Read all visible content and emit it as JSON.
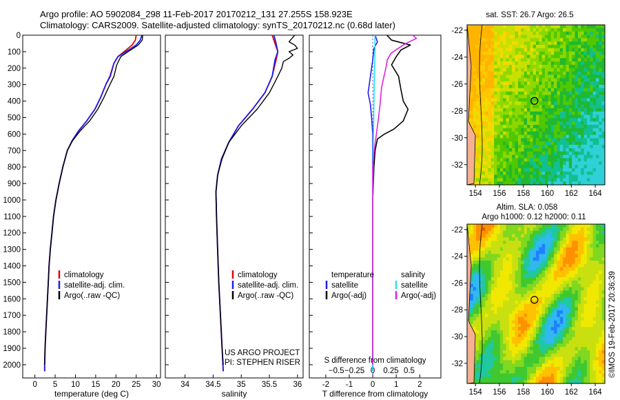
{
  "header": {
    "line1": "Argo profile: AO 5902084_298 11-Feb-2017 20170212_131 27.255S 158.923E",
    "line2": "Climatology: CARS2009. Satellite-adjusted climatology: synTS_20170212.nc (0.68d later)"
  },
  "colors": {
    "climatology": "#e00000",
    "satellite": "#1c1cf0",
    "argo": "#000000",
    "salinity_satellite": "#22e0f0",
    "salinity_argo": "#e020e0"
  },
  "chart_data": [
    {
      "type": "line",
      "name": "temperature",
      "xlabel": "temperature (deg C)",
      "ylabel": "",
      "xlim": [
        -3,
        31
      ],
      "ylim": [
        2080,
        0
      ],
      "xticks": [
        0,
        5,
        10,
        15,
        20,
        25,
        30
      ],
      "yticks": [
        0,
        100,
        200,
        300,
        400,
        500,
        600,
        700,
        800,
        900,
        1000,
        1100,
        1200,
        1300,
        1400,
        1500,
        1600,
        1700,
        1800,
        1900,
        2000
      ],
      "legend": [
        "climatology",
        "satellite-adj. clim.",
        "Argo(..raw -QC)"
      ],
      "series": [
        {
          "name": "climatology",
          "key": "climatology",
          "points": [
            [
              25,
              0
            ],
            [
              24.8,
              30
            ],
            [
              24,
              60
            ],
            [
              22,
              100
            ],
            [
              20.5,
              130
            ],
            [
              19.5,
              170
            ],
            [
              18.5,
              250
            ],
            [
              17.5,
              300
            ],
            [
              16.2,
              380
            ],
            [
              14.8,
              450
            ],
            [
              12.8,
              520
            ],
            [
              10.8,
              580
            ],
            [
              9.2,
              640
            ],
            [
              8,
              700
            ],
            [
              6.9,
              800
            ],
            [
              6,
              900
            ],
            [
              5.2,
              1000
            ],
            [
              4.6,
              1100
            ],
            [
              4.2,
              1200
            ],
            [
              3.8,
              1300
            ],
            [
              3.5,
              1400
            ],
            [
              3.3,
              1500
            ],
            [
              3.1,
              1600
            ],
            [
              2.9,
              1700
            ],
            [
              2.7,
              1800
            ],
            [
              2.5,
              1900
            ],
            [
              2.4,
              2000
            ],
            [
              2.4,
              2040
            ]
          ]
        },
        {
          "name": "satellite-adj. clim.",
          "key": "satellite",
          "points": [
            [
              26.4,
              0
            ],
            [
              26,
              30
            ],
            [
              25,
              60
            ],
            [
              22.5,
              100
            ],
            [
              20.5,
              130
            ],
            [
              19.5,
              170
            ],
            [
              18.6,
              250
            ],
            [
              17.5,
              300
            ],
            [
              16.2,
              380
            ],
            [
              14.8,
              450
            ],
            [
              12.8,
              520
            ],
            [
              10.8,
              580
            ],
            [
              9.2,
              640
            ],
            [
              8,
              700
            ],
            [
              6.9,
              800
            ],
            [
              6,
              900
            ],
            [
              5.2,
              1000
            ],
            [
              4.6,
              1100
            ],
            [
              4.2,
              1200
            ],
            [
              3.8,
              1300
            ],
            [
              3.5,
              1400
            ],
            [
              3.3,
              1500
            ],
            [
              3.1,
              1600
            ],
            [
              2.9,
              1700
            ],
            [
              2.7,
              1800
            ],
            [
              2.5,
              1900
            ],
            [
              2.4,
              2000
            ],
            [
              2.4,
              2040
            ]
          ]
        },
        {
          "name": "Argo(..raw -QC)",
          "key": "argo",
          "points": [
            [
              26.6,
              0
            ],
            [
              26.5,
              30
            ],
            [
              25.5,
              60
            ],
            [
              23,
              100
            ],
            [
              21.2,
              130
            ],
            [
              20.2,
              180
            ],
            [
              19.5,
              250
            ],
            [
              18.5,
              300
            ],
            [
              17,
              380
            ],
            [
              15.5,
              450
            ],
            [
              13.5,
              520
            ],
            [
              11.2,
              580
            ],
            [
              9.3,
              640
            ],
            [
              8,
              700
            ],
            [
              6.9,
              800
            ],
            [
              6,
              900
            ],
            [
              5.2,
              1000
            ],
            [
              4.6,
              1100
            ],
            [
              4.2,
              1200
            ],
            [
              3.8,
              1300
            ],
            [
              3.5,
              1400
            ],
            [
              3.3,
              1500
            ],
            [
              3.1,
              1600
            ],
            [
              2.9,
              1700
            ],
            [
              2.7,
              1800
            ],
            [
              2.5,
              1900
            ],
            [
              2.4,
              2000
            ]
          ]
        }
      ]
    },
    {
      "type": "line",
      "name": "salinity",
      "xlabel": "salinity",
      "xlim": [
        33.65,
        36.1
      ],
      "ylim": [
        2080,
        0
      ],
      "xticks": [
        34,
        34.5,
        35,
        35.5,
        36
      ],
      "xticklabels": [
        "34",
        "34.5",
        "35",
        "35.5",
        "36"
      ],
      "legend": [
        "climatology",
        "satellite-adj. clim.",
        "Argo(..raw -QC)"
      ],
      "series": [
        {
          "name": "climatology",
          "key": "climatology",
          "points": [
            [
              35.55,
              0
            ],
            [
              35.6,
              50
            ],
            [
              35.65,
              100
            ],
            [
              35.62,
              150
            ],
            [
              35.55,
              250
            ],
            [
              35.42,
              350
            ],
            [
              35.2,
              450
            ],
            [
              34.95,
              550
            ],
            [
              34.78,
              650
            ],
            [
              34.65,
              750
            ],
            [
              34.58,
              850
            ],
            [
              34.55,
              950
            ],
            [
              34.56,
              1100
            ],
            [
              34.58,
              1300
            ],
            [
              34.6,
              1500
            ],
            [
              34.63,
              1700
            ],
            [
              34.66,
              1900
            ],
            [
              34.68,
              2040
            ]
          ]
        },
        {
          "name": "satellite-adj. clim.",
          "key": "satellite",
          "points": [
            [
              35.58,
              0
            ],
            [
              35.62,
              50
            ],
            [
              35.65,
              100
            ],
            [
              35.6,
              150
            ],
            [
              35.55,
              250
            ],
            [
              35.42,
              350
            ],
            [
              35.2,
              450
            ],
            [
              34.95,
              550
            ],
            [
              34.78,
              650
            ],
            [
              34.65,
              750
            ],
            [
              34.58,
              850
            ],
            [
              34.55,
              950
            ],
            [
              34.56,
              1100
            ],
            [
              34.58,
              1300
            ],
            [
              34.6,
              1500
            ],
            [
              34.63,
              1700
            ],
            [
              34.66,
              1900
            ],
            [
              34.68,
              2040
            ]
          ]
        },
        {
          "name": "Argo(..raw -QC)",
          "key": "argo",
          "points": [
            [
              35.95,
              0
            ],
            [
              35.9,
              20
            ],
            [
              35.85,
              40
            ],
            [
              35.95,
              60
            ],
            [
              36,
              80
            ],
            [
              35.85,
              100
            ],
            [
              35.92,
              120
            ],
            [
              35.85,
              140
            ],
            [
              35.75,
              160
            ],
            [
              35.72,
              200
            ],
            [
              35.65,
              250
            ],
            [
              35.5,
              350
            ],
            [
              35.28,
              450
            ],
            [
              35.0,
              550
            ],
            [
              34.78,
              650
            ],
            [
              34.66,
              750
            ],
            [
              34.58,
              850
            ],
            [
              34.55,
              950
            ],
            [
              34.56,
              1100
            ],
            [
              34.58,
              1300
            ],
            [
              34.6,
              1500
            ],
            [
              34.63,
              1700
            ],
            [
              34.66,
              1900
            ],
            [
              34.68,
              2000
            ]
          ]
        }
      ],
      "annotation": [
        "US ARGO PROJECT",
        "PI: STEPHEN RISER"
      ]
    },
    {
      "type": "line",
      "name": "difference",
      "xlabel": "T difference from climatology",
      "xlabel_top": "S difference from climatology",
      "xlim": [
        -2.7,
        2.9
      ],
      "ylim": [
        2080,
        0
      ],
      "xticks": [
        -2,
        -1,
        0,
        1,
        2
      ],
      "sticks": [
        -0.5,
        -0.25,
        0,
        0.25,
        0.5
      ],
      "sticklabels": [
        "−0.5",
        "−0.25",
        "0",
        "0.25",
        "0.5"
      ],
      "legend_temperature": [
        "temperature",
        "satellite",
        "Argo(-adj)"
      ],
      "legend_salinity": [
        "salinity",
        "satellite",
        "Argo(-adj)"
      ],
      "series": [
        {
          "name": "temperature satellite",
          "key": "satellite",
          "points": [
            [
              0.1,
              0
            ],
            [
              0.2,
              40
            ],
            [
              0.05,
              80
            ],
            [
              0,
              150
            ],
            [
              -0.1,
              250
            ],
            [
              -0.2,
              350
            ],
            [
              -0.1,
              420
            ],
            [
              -0.05,
              500
            ],
            [
              0,
              600
            ],
            [
              0,
              800
            ],
            [
              0,
              1000
            ],
            [
              0,
              1500
            ],
            [
              0,
              2000
            ],
            [
              0,
              2040
            ]
          ]
        },
        {
          "name": "temperature Argo(-adj)",
          "key": "argo",
          "points": [
            [
              0.6,
              0
            ],
            [
              0.8,
              30
            ],
            [
              1.6,
              60
            ],
            [
              1.2,
              90
            ],
            [
              1.0,
              130
            ],
            [
              0.8,
              180
            ],
            [
              1.1,
              250
            ],
            [
              1.2,
              330
            ],
            [
              1.3,
              400
            ],
            [
              1.5,
              450
            ],
            [
              1.3,
              520
            ],
            [
              0.9,
              570
            ],
            [
              0.5,
              600
            ],
            [
              0.2,
              630
            ],
            [
              0.1,
              700
            ],
            [
              0.05,
              800
            ],
            [
              0,
              1000
            ],
            [
              0,
              1500
            ],
            [
              0,
              2000
            ]
          ]
        },
        {
          "name": "salinity satellite",
          "key": "salinity_satellite",
          "points": [
            [
              0.03,
              0
            ],
            [
              0.03,
              100
            ],
            [
              0.02,
              300
            ],
            [
              0.01,
              600
            ],
            [
              0,
              1000
            ],
            [
              0,
              1500
            ],
            [
              0,
              2000
            ],
            [
              0,
              2040
            ]
          ]
        },
        {
          "name": "salinity Argo(-adj)",
          "key": "salinity_argo",
          "points": [
            [
              0.55,
              0
            ],
            [
              0.6,
              20
            ],
            [
              0.5,
              40
            ],
            [
              0.42,
              60
            ],
            [
              0.35,
              80
            ],
            [
              0.25,
              110
            ],
            [
              0.2,
              150
            ],
            [
              0.18,
              200
            ],
            [
              0.15,
              260
            ],
            [
              0.12,
              320
            ],
            [
              0.1,
              420
            ],
            [
              0.08,
              500
            ],
            [
              0.05,
              600
            ],
            [
              0.02,
              700
            ],
            [
              0,
              800
            ],
            [
              0,
              1000
            ],
            [
              0,
              2000
            ]
          ]
        }
      ]
    },
    {
      "type": "heatmap",
      "name": "sst-map",
      "title": "sat. SST: 26.7  Argo: 26.5",
      "xlim": [
        153.3,
        164.8
      ],
      "ylim": [
        -33.5,
        -21.6
      ],
      "xticks": [
        154,
        156,
        158,
        160,
        162,
        164
      ],
      "yticks": [
        -22,
        -24,
        -26,
        -28,
        -30,
        -32
      ],
      "profile_location": [
        158.923,
        -27.255
      ]
    },
    {
      "type": "heatmap",
      "name": "sla-map",
      "title": "Altim. SLA: 0.058",
      "title2": "Argo h1000: 0.12  h2000: 0.11",
      "xlim": [
        153.3,
        164.8
      ],
      "ylim": [
        -33.5,
        -21.6
      ],
      "xticks": [
        154,
        156,
        158,
        160,
        162,
        164
      ],
      "yticks": [
        -22,
        -24,
        -26,
        -28,
        -30,
        -32
      ],
      "profile_location": [
        158.923,
        -27.255
      ]
    }
  ],
  "credit": "©IMOS 19-Feb-2017 20:36:39"
}
